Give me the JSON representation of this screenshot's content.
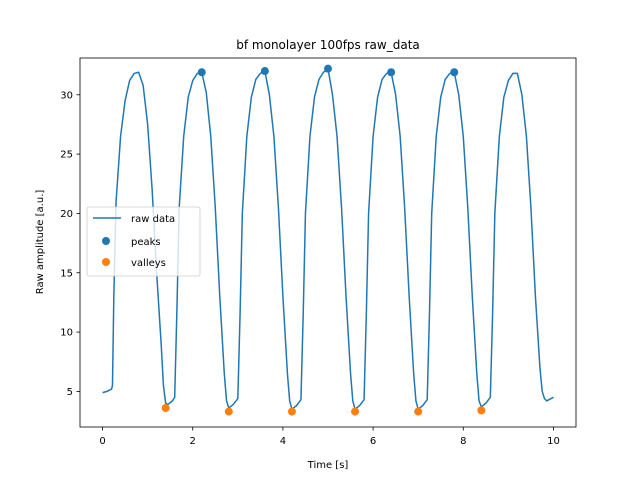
{
  "chart_data": {
    "type": "line",
    "title": "bf monolayer 100fps raw_data",
    "xlabel": "Time [s]",
    "ylabel": "Raw amplitude [a.u.]",
    "xlim": [
      -0.5,
      10.5
    ],
    "ylim": [
      2.0,
      33.1
    ],
    "xticks": [
      0,
      2,
      4,
      6,
      8,
      10
    ],
    "yticks": [
      5,
      10,
      15,
      20,
      25,
      30
    ],
    "grid": false,
    "legend": {
      "position": "center-left",
      "entries": [
        "raw data",
        "peaks",
        "valleys"
      ]
    },
    "colors": {
      "line": "#1f77b4",
      "peaks": "#1f77b4",
      "valleys": "#ff7f0e"
    },
    "series": [
      {
        "name": "raw data",
        "kind": "line",
        "points": [
          [
            0.0,
            4.9
          ],
          [
            0.1,
            5.0
          ],
          [
            0.15,
            5.1
          ],
          [
            0.2,
            5.2
          ],
          [
            0.22,
            5.5
          ],
          [
            0.25,
            13.0
          ],
          [
            0.3,
            21.0
          ],
          [
            0.4,
            26.5
          ],
          [
            0.5,
            29.5
          ],
          [
            0.6,
            31.2
          ],
          [
            0.7,
            31.8
          ],
          [
            0.8,
            31.9
          ],
          [
            0.9,
            30.8
          ],
          [
            1.0,
            27.5
          ],
          [
            1.1,
            22.0
          ],
          [
            1.2,
            15.0
          ],
          [
            1.3,
            9.0
          ],
          [
            1.35,
            5.5
          ],
          [
            1.4,
            4.0
          ],
          [
            1.45,
            3.9
          ],
          [
            1.55,
            4.2
          ],
          [
            1.6,
            4.5
          ],
          [
            1.65,
            12.0
          ],
          [
            1.7,
            20.5
          ],
          [
            1.8,
            26.5
          ],
          [
            1.9,
            29.8
          ],
          [
            2.0,
            31.2
          ],
          [
            2.1,
            31.8
          ],
          [
            2.2,
            31.9
          ],
          [
            2.3,
            30.2
          ],
          [
            2.4,
            26.5
          ],
          [
            2.5,
            20.5
          ],
          [
            2.6,
            13.0
          ],
          [
            2.7,
            6.5
          ],
          [
            2.75,
            4.2
          ],
          [
            2.8,
            3.6
          ],
          [
            2.9,
            3.9
          ],
          [
            3.0,
            4.4
          ],
          [
            3.05,
            11.5
          ],
          [
            3.1,
            20.0
          ],
          [
            3.2,
            26.5
          ],
          [
            3.3,
            29.8
          ],
          [
            3.4,
            31.3
          ],
          [
            3.5,
            31.8
          ],
          [
            3.6,
            32.0
          ],
          [
            3.7,
            30.0
          ],
          [
            3.8,
            26.5
          ],
          [
            3.9,
            20.5
          ],
          [
            4.0,
            13.0
          ],
          [
            4.1,
            6.5
          ],
          [
            4.15,
            4.2
          ],
          [
            4.2,
            3.5
          ],
          [
            4.3,
            3.8
          ],
          [
            4.4,
            4.3
          ],
          [
            4.45,
            11.5
          ],
          [
            4.5,
            20.0
          ],
          [
            4.6,
            26.5
          ],
          [
            4.7,
            29.8
          ],
          [
            4.8,
            31.3
          ],
          [
            4.9,
            31.9
          ],
          [
            5.0,
            32.2
          ],
          [
            5.1,
            30.0
          ],
          [
            5.2,
            26.5
          ],
          [
            5.3,
            20.5
          ],
          [
            5.4,
            13.0
          ],
          [
            5.5,
            6.5
          ],
          [
            5.55,
            4.2
          ],
          [
            5.6,
            3.5
          ],
          [
            5.7,
            3.8
          ],
          [
            5.8,
            4.3
          ],
          [
            5.85,
            11.5
          ],
          [
            5.9,
            20.0
          ],
          [
            6.0,
            26.5
          ],
          [
            6.1,
            29.8
          ],
          [
            6.2,
            31.3
          ],
          [
            6.3,
            31.8
          ],
          [
            6.4,
            31.9
          ],
          [
            6.5,
            30.0
          ],
          [
            6.6,
            26.5
          ],
          [
            6.7,
            20.5
          ],
          [
            6.8,
            13.0
          ],
          [
            6.9,
            6.5
          ],
          [
            6.95,
            4.2
          ],
          [
            7.0,
            3.5
          ],
          [
            7.1,
            3.8
          ],
          [
            7.2,
            4.3
          ],
          [
            7.25,
            11.5
          ],
          [
            7.3,
            20.0
          ],
          [
            7.4,
            26.5
          ],
          [
            7.5,
            29.8
          ],
          [
            7.6,
            31.3
          ],
          [
            7.7,
            31.8
          ],
          [
            7.8,
            31.9
          ],
          [
            7.9,
            30.0
          ],
          [
            8.0,
            26.5
          ],
          [
            8.1,
            20.5
          ],
          [
            8.2,
            13.0
          ],
          [
            8.3,
            6.5
          ],
          [
            8.35,
            4.2
          ],
          [
            8.4,
            3.7
          ],
          [
            8.5,
            4.0
          ],
          [
            8.6,
            4.5
          ],
          [
            8.65,
            11.5
          ],
          [
            8.7,
            20.0
          ],
          [
            8.8,
            26.5
          ],
          [
            8.9,
            29.8
          ],
          [
            9.0,
            31.2
          ],
          [
            9.1,
            31.8
          ],
          [
            9.2,
            31.8
          ],
          [
            9.3,
            30.0
          ],
          [
            9.4,
            26.5
          ],
          [
            9.5,
            20.5
          ],
          [
            9.6,
            13.0
          ],
          [
            9.7,
            7.0
          ],
          [
            9.75,
            5.0
          ],
          [
            9.8,
            4.4
          ],
          [
            9.85,
            4.2
          ],
          [
            9.9,
            4.3
          ],
          [
            10.0,
            4.5
          ]
        ]
      },
      {
        "name": "peaks",
        "kind": "scatter",
        "points": [
          [
            2.2,
            31.9
          ],
          [
            3.6,
            32.0
          ],
          [
            5.0,
            32.2
          ],
          [
            6.4,
            31.9
          ],
          [
            7.8,
            31.9
          ]
        ]
      },
      {
        "name": "valleys",
        "kind": "scatter",
        "points": [
          [
            1.4,
            3.6
          ],
          [
            2.8,
            3.3
          ],
          [
            4.2,
            3.3
          ],
          [
            5.6,
            3.3
          ],
          [
            7.0,
            3.3
          ],
          [
            8.4,
            3.4
          ]
        ]
      }
    ]
  }
}
